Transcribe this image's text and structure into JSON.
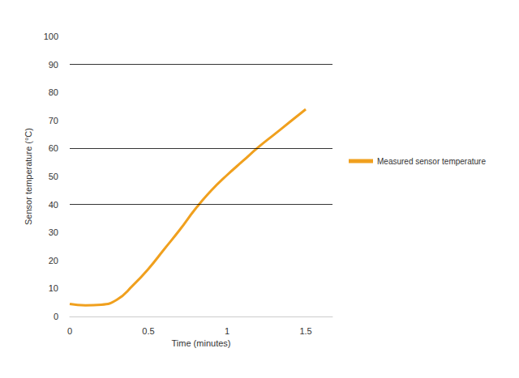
{
  "chart_data": {
    "type": "line",
    "x_label": "Time (minutes)",
    "y_label": "Sensor temperature (°C)",
    "series": [
      {
        "name": "Measured sensor temperature",
        "color": "#f0a01e",
        "x": [
          0,
          0.1,
          0.2,
          0.3,
          0.4,
          0.5,
          0.6,
          0.7,
          0.8,
          0.9,
          1.0,
          1.1,
          1.2,
          1.3,
          1.4,
          1.5
        ],
        "values": [
          4.5,
          4,
          4.2,
          6,
          11,
          17,
          24,
          31,
          38.5,
          45,
          50.5,
          55.5,
          60.5,
          65,
          69.5,
          74
        ]
      }
    ],
    "xlim": [
      0,
      1.67
    ],
    "xticks": [
      0,
      0.5,
      1,
      1.5
    ],
    "ylim": [
      0,
      100
    ],
    "yticks": [
      0,
      10,
      20,
      30,
      40,
      50,
      60,
      70,
      80,
      90,
      100
    ],
    "grid": false,
    "reference_lines": [
      40,
      60,
      90
    ],
    "legend": "right"
  }
}
